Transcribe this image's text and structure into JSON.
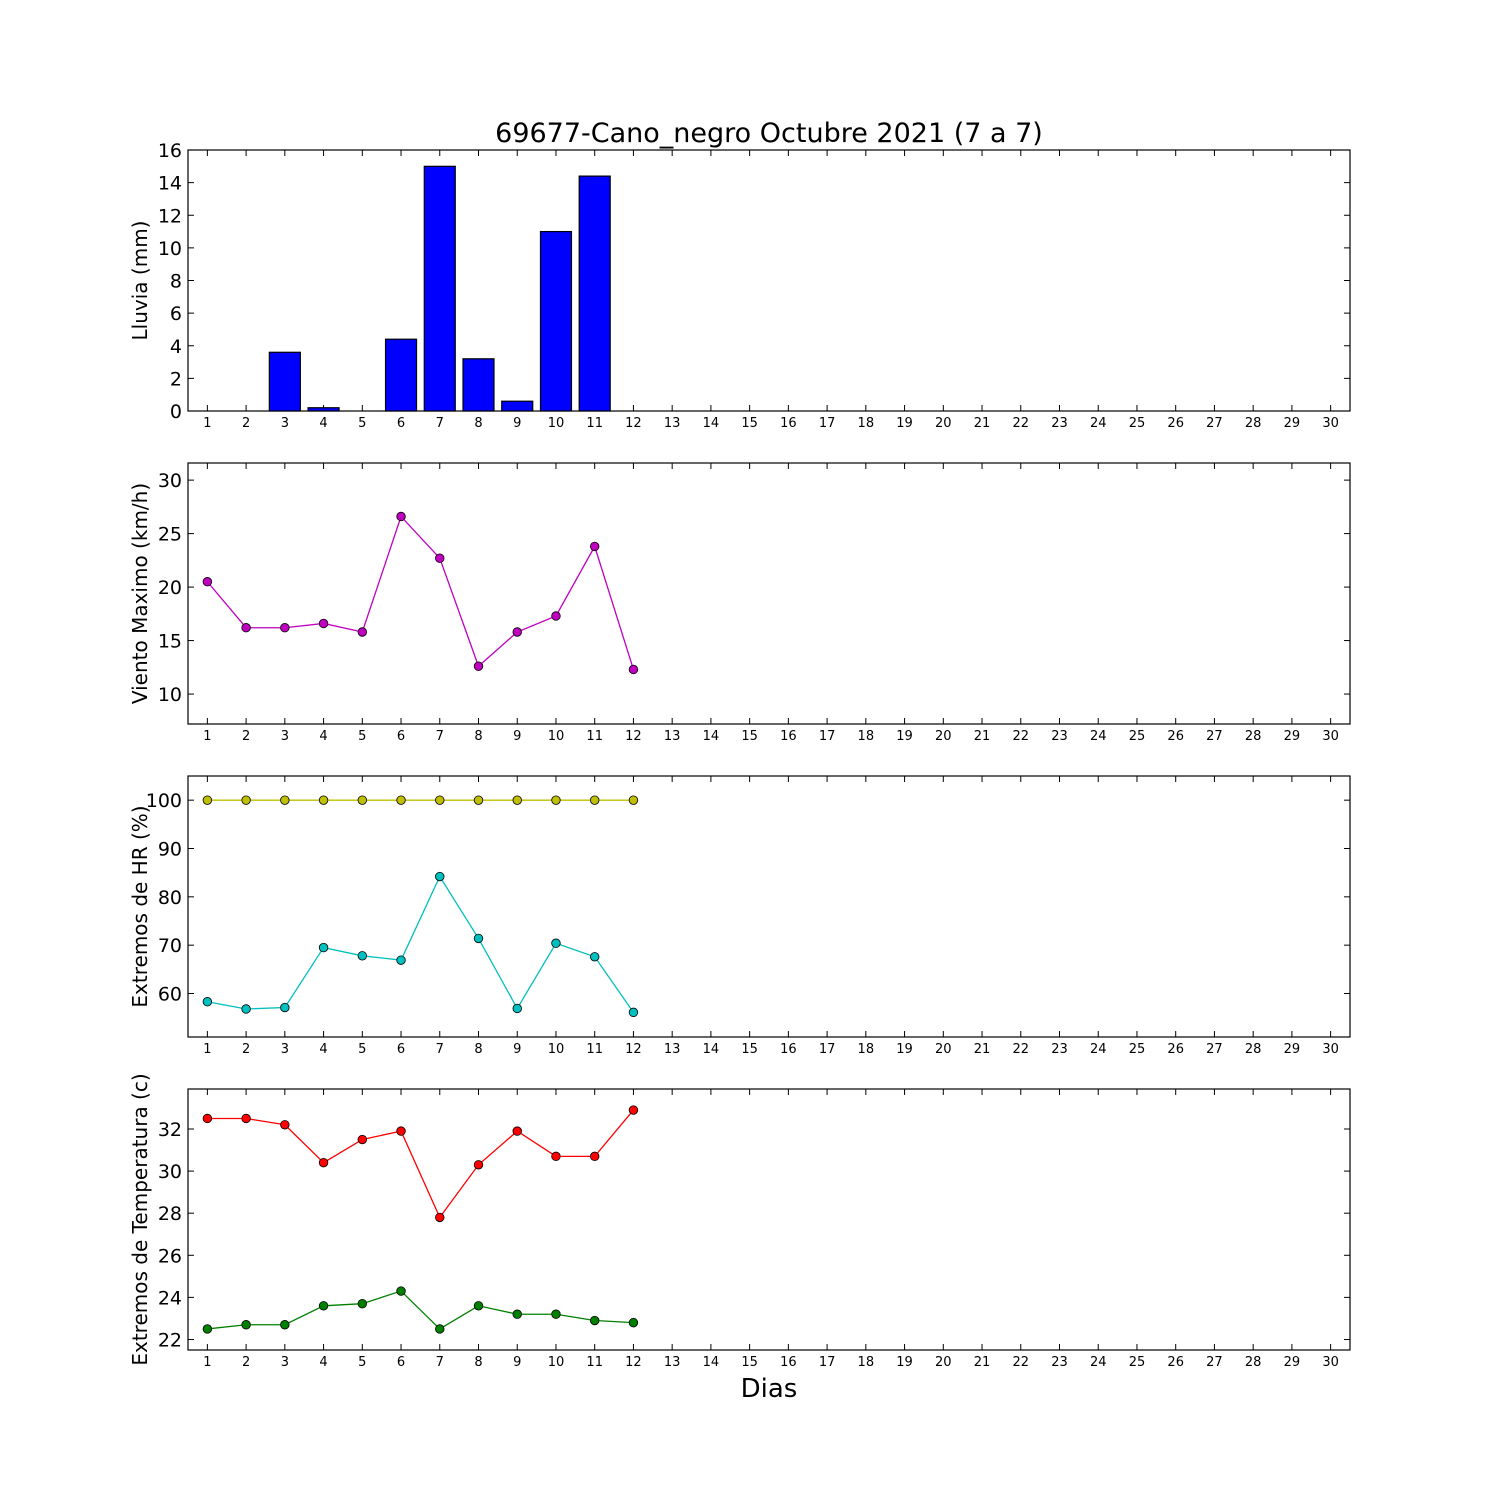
{
  "figure": {
    "title": "69677-Cano_negro Octubre 2021  (7 a 7)",
    "xlabel": "Dias"
  },
  "chart_data": [
    {
      "type": "bar",
      "ylabel": "Lluvia (mm)",
      "ylim": [
        0,
        16
      ],
      "yticks": [
        0,
        2,
        4,
        6,
        8,
        10,
        12,
        14,
        16
      ],
      "xlim": [
        0.5,
        30.5
      ],
      "xticks": [
        1,
        2,
        3,
        4,
        5,
        6,
        7,
        8,
        9,
        10,
        11,
        12,
        13,
        14,
        15,
        16,
        17,
        18,
        19,
        20,
        21,
        22,
        23,
        24,
        25,
        26,
        27,
        28,
        29,
        30
      ],
      "grid": false,
      "categories": [
        1,
        2,
        3,
        4,
        5,
        6,
        7,
        8,
        9,
        10,
        11,
        12
      ],
      "series": [
        {
          "values": [
            0,
            0,
            3.6,
            0.2,
            0,
            4.4,
            15.0,
            3.2,
            0.6,
            11.0,
            14.4,
            0
          ],
          "color": "#0000ff"
        }
      ]
    },
    {
      "type": "line",
      "ylabel": "Viento Maximo (km/h)",
      "ylim": [
        7.2,
        31.6
      ],
      "yticks": [
        10,
        15,
        20,
        25,
        30
      ],
      "xlim": [
        0.5,
        30.5
      ],
      "xticks": [
        1,
        2,
        3,
        4,
        5,
        6,
        7,
        8,
        9,
        10,
        11,
        12,
        13,
        14,
        15,
        16,
        17,
        18,
        19,
        20,
        21,
        22,
        23,
        24,
        25,
        26,
        27,
        28,
        29,
        30
      ],
      "grid": false,
      "x": [
        1,
        2,
        3,
        4,
        5,
        6,
        7,
        8,
        9,
        10,
        11,
        12
      ],
      "series": [
        {
          "values": [
            20.5,
            16.2,
            16.2,
            16.6,
            15.8,
            26.6,
            22.7,
            12.6,
            15.8,
            17.3,
            23.8,
            12.3
          ],
          "color": "#bf00bf"
        }
      ]
    },
    {
      "type": "line",
      "ylabel": "Extremos de HR (%)",
      "ylim": [
        51,
        105
      ],
      "yticks": [
        60,
        70,
        80,
        90,
        100
      ],
      "xlim": [
        0.5,
        30.5
      ],
      "xticks": [
        1,
        2,
        3,
        4,
        5,
        6,
        7,
        8,
        9,
        10,
        11,
        12,
        13,
        14,
        15,
        16,
        17,
        18,
        19,
        20,
        21,
        22,
        23,
        24,
        25,
        26,
        27,
        28,
        29,
        30
      ],
      "grid": false,
      "x": [
        1,
        2,
        3,
        4,
        5,
        6,
        7,
        8,
        9,
        10,
        11,
        12
      ],
      "series": [
        {
          "values": [
            100,
            100,
            100,
            100,
            100,
            100,
            100,
            100,
            100,
            100,
            100,
            100
          ],
          "color": "#bfbf00"
        },
        {
          "values": [
            58.3,
            56.8,
            57.1,
            69.5,
            67.8,
            66.9,
            84.2,
            71.4,
            56.9,
            70.4,
            67.6,
            56.1
          ],
          "color": "#00bfbf"
        }
      ]
    },
    {
      "type": "line",
      "ylabel": "Extremos de Temperatura (c)",
      "ylim": [
        21.5,
        33.9
      ],
      "yticks": [
        22,
        24,
        26,
        28,
        30,
        32
      ],
      "xlim": [
        0.5,
        30.5
      ],
      "xticks": [
        1,
        2,
        3,
        4,
        5,
        6,
        7,
        8,
        9,
        10,
        11,
        12,
        13,
        14,
        15,
        16,
        17,
        18,
        19,
        20,
        21,
        22,
        23,
        24,
        25,
        26,
        27,
        28,
        29,
        30
      ],
      "grid": false,
      "x": [
        1,
        2,
        3,
        4,
        5,
        6,
        7,
        8,
        9,
        10,
        11,
        12
      ],
      "series": [
        {
          "values": [
            32.5,
            32.5,
            32.2,
            30.4,
            31.5,
            31.9,
            27.8,
            30.3,
            31.9,
            30.7,
            30.7,
            32.9
          ],
          "color": "#ff0000"
        },
        {
          "values": [
            22.5,
            22.7,
            22.7,
            23.6,
            23.7,
            24.3,
            22.5,
            23.6,
            23.2,
            23.2,
            22.9,
            22.8
          ],
          "color": "#008000"
        }
      ]
    }
  ]
}
